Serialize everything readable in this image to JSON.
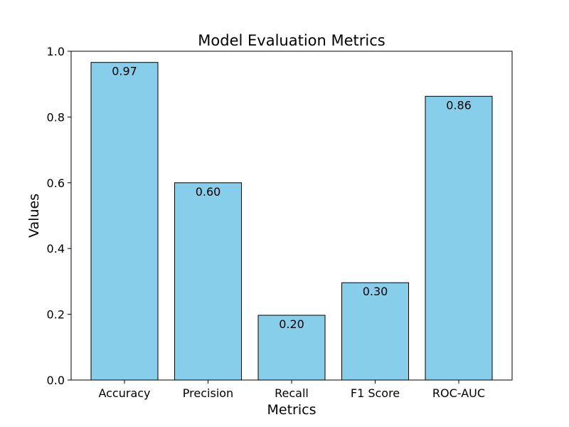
{
  "chart_data": {
    "type": "bar",
    "title": "Model Evaluation Metrics",
    "xlabel": "Metrics",
    "ylabel": "Values",
    "categories": [
      "Accuracy",
      "Precision",
      "Recall",
      "F1 Score",
      "ROC-AUC"
    ],
    "values": [
      0.966,
      0.6,
      0.197,
      0.296,
      0.863
    ],
    "data_labels": [
      "0.97",
      "0.60",
      "0.20",
      "0.30",
      "0.86"
    ],
    "ylim": [
      0,
      1.0
    ],
    "yticks": [
      0.0,
      0.2,
      0.4,
      0.6,
      0.8,
      1.0
    ],
    "ytick_labels": [
      "0.0",
      "0.2",
      "0.4",
      "0.6",
      "0.8",
      "1.0"
    ],
    "grid": false,
    "bar_color": "#87ceeb",
    "bar_edge_color": "#000000"
  }
}
